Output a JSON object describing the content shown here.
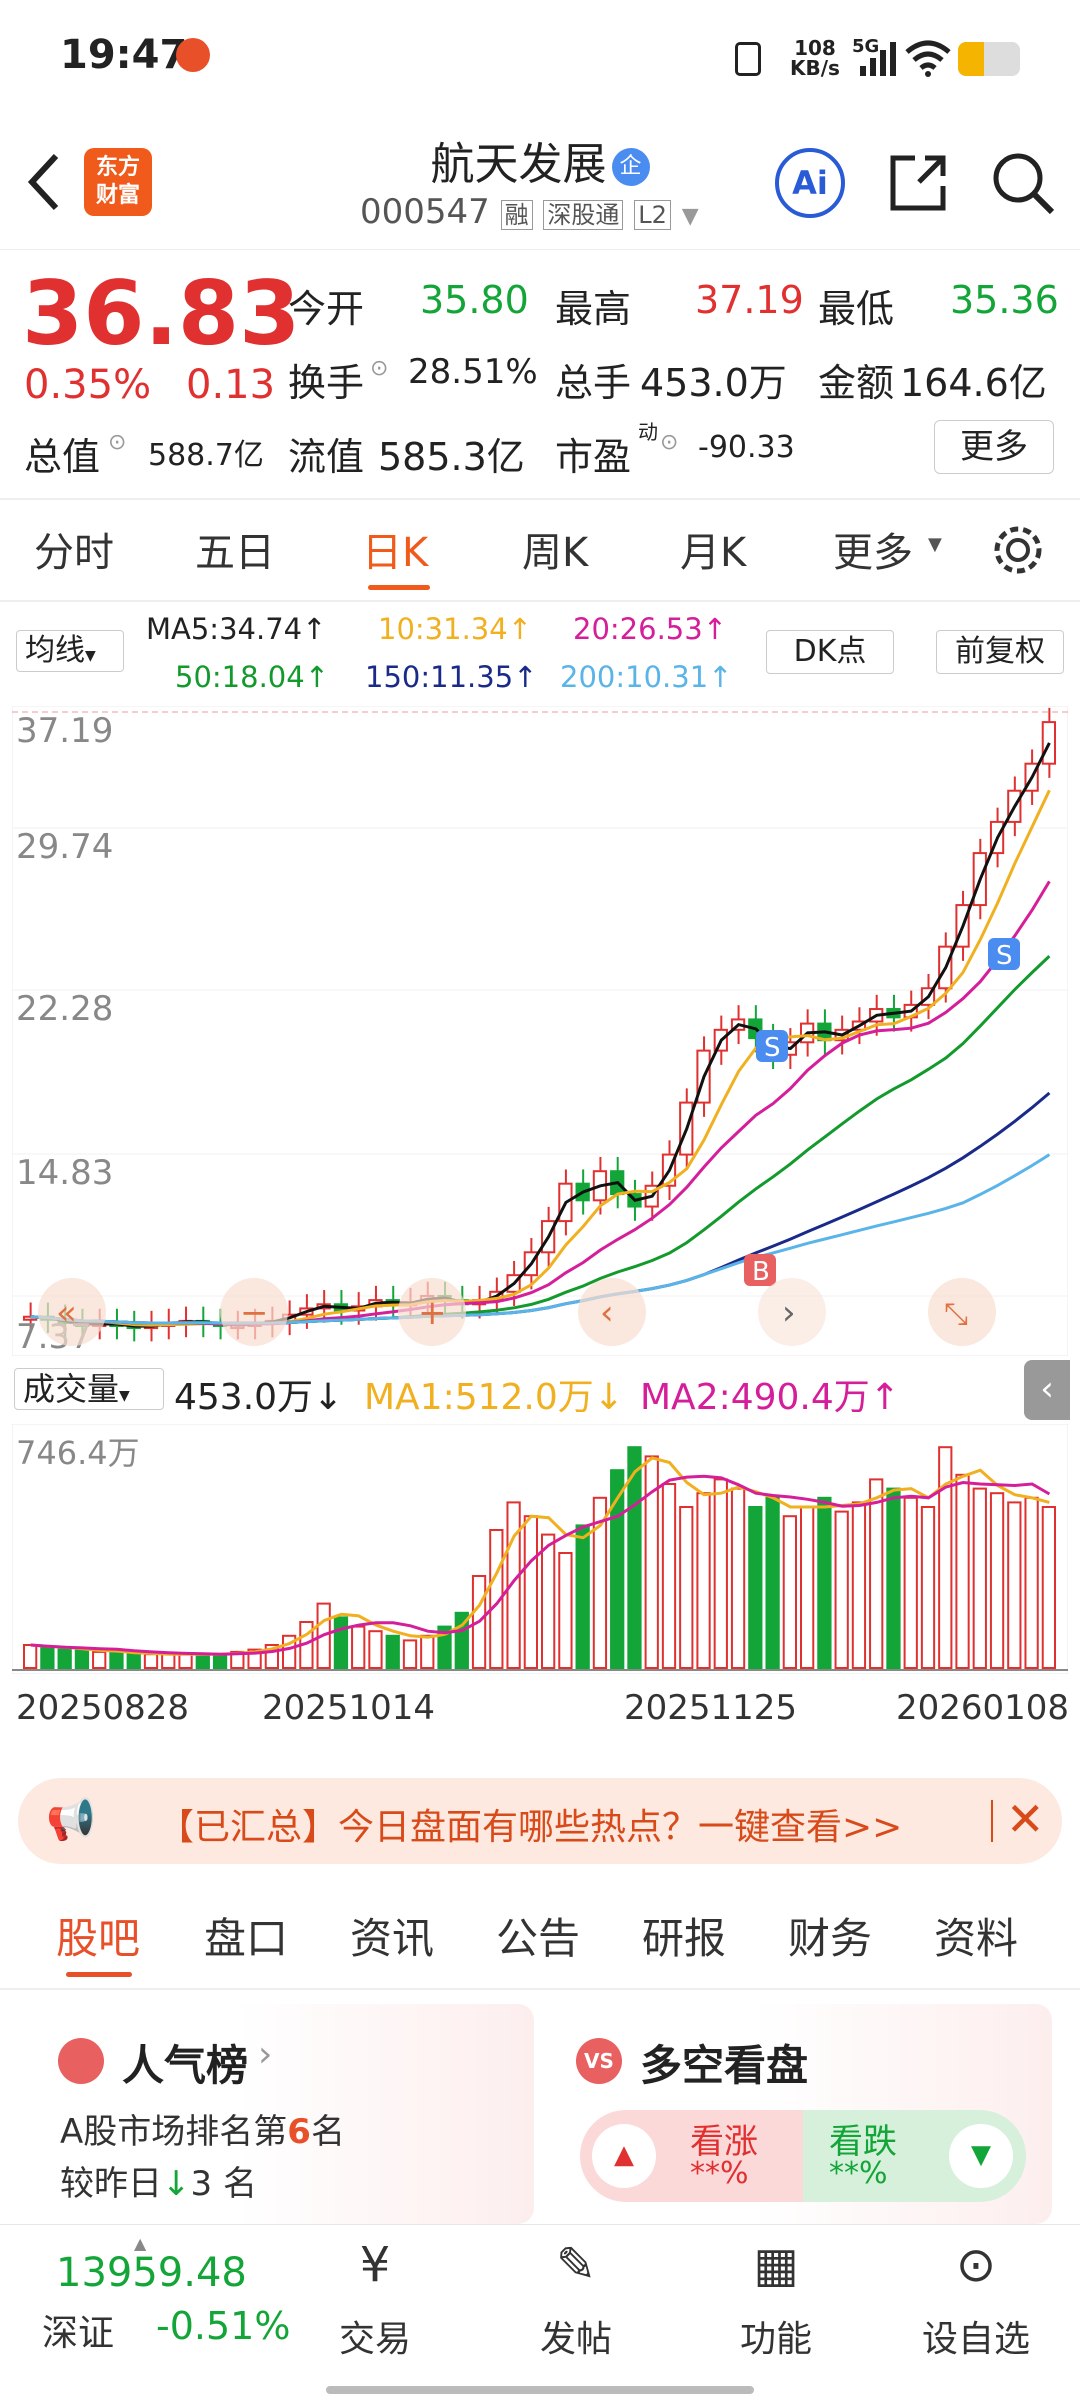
{
  "status": {
    "time": "19:47",
    "net_speed": "108",
    "net_unit": "KB/s",
    "signal": "5G"
  },
  "header": {
    "title": "航天发展",
    "badge": "企",
    "code": "000547",
    "tags": [
      "融",
      "深股通",
      "L2"
    ],
    "app_logo": "东方\n财富",
    "ai_label": "Ai"
  },
  "quote": {
    "price": "36.83",
    "change_pct": "0.35%",
    "change": "0.13",
    "open_label": "今开",
    "open": "35.80",
    "high_label": "最高",
    "high": "37.19",
    "low_label": "最低",
    "low": "35.36",
    "turnover_label": "换手",
    "turnover": "28.51%",
    "volume_label": "总手",
    "volume": "453.0万",
    "amount_label": "金额",
    "amount": "164.6亿",
    "mktcap_label": "总值",
    "mktcap": "588.7亿",
    "float_label": "流值",
    "float": "585.3亿",
    "pe_label": "市盈",
    "pe_sup": "动",
    "pe": "-90.33",
    "more": "更多"
  },
  "chart_tabs": [
    "分时",
    "五日",
    "日K",
    "周K",
    "月K",
    "更多"
  ],
  "active_tab": "日K",
  "ma_legend": {
    "selector": "均线",
    "ma5": "MA5:34.74↑",
    "ma10": "10:31.34↑",
    "ma20": "20:26.53↑",
    "ma50": "50:18.04↑",
    "ma150": "150:11.35↑",
    "ma200": "200:10.31↑",
    "dk": "DK点",
    "fq": "前复权"
  },
  "vol_legend": {
    "selector": "成交量",
    "vol": "453.0万↓",
    "ma1": "MA1:512.0万↓",
    "ma2": "MA2:490.4万↑",
    "max": "746.4万"
  },
  "chart_data": {
    "type": "candlestick",
    "yticks": [
      "37.19",
      "29.74",
      "22.28",
      "14.83",
      "7.37"
    ],
    "xticks": [
      "20250828",
      "20251014",
      "20251125",
      "20260108"
    ],
    "ylim": [
      7.37,
      37.19
    ],
    "close_trend": [
      8.2,
      8.1,
      7.9,
      7.8,
      7.9,
      7.8,
      7.7,
      7.8,
      7.9,
      8.0,
      7.9,
      7.8,
      7.8,
      7.9,
      8.0,
      8.3,
      8.6,
      8.8,
      8.5,
      8.7,
      9.0,
      8.8,
      8.9,
      9.2,
      9.0,
      8.8,
      9.0,
      9.4,
      10.2,
      11.3,
      12.8,
      14.6,
      13.8,
      15.2,
      14.1,
      13.5,
      14.5,
      16.0,
      18.5,
      21.0,
      22.0,
      22.5,
      21.6,
      20.8,
      21.4,
      22.3,
      21.5,
      22.0,
      22.4,
      23.0,
      22.6,
      23.2,
      24.0,
      26.0,
      28.0,
      30.5,
      32.0,
      33.5,
      34.8,
      36.8
    ],
    "volume_trend": [
      10,
      9,
      8,
      8,
      7,
      7,
      6,
      6,
      6,
      6,
      6,
      6,
      7,
      8,
      10,
      14,
      20,
      28,
      22,
      18,
      16,
      14,
      12,
      14,
      18,
      24,
      40,
      60,
      72,
      66,
      58,
      50,
      62,
      74,
      86,
      96,
      92,
      80,
      70,
      76,
      82,
      78,
      70,
      74,
      66,
      70,
      74,
      68,
      72,
      82,
      78,
      74,
      70,
      96,
      84,
      78,
      76,
      72,
      74,
      70
    ]
  },
  "banner": {
    "text": "【已汇总】今日盘面有哪些热点？一键查看>>"
  },
  "bottom_tabs": [
    "股吧",
    "盘口",
    "资讯",
    "公告",
    "研报",
    "财务",
    "资料"
  ],
  "cards": {
    "popularity_title": "人气榜",
    "rank_line_prefix": "A股市场排名第",
    "rank": "6",
    "rank_unit": "名",
    "change_prefix": "较昨日",
    "change_rank": "3",
    "change_unit": "名",
    "vs_title": "多空看盘",
    "bull": "看涨",
    "bull_pct": "**%",
    "bear": "看跌",
    "bear_pct": "**%"
  },
  "nav": {
    "index_value": "13959.48",
    "index_name": "深证",
    "index_change": "-0.51%",
    "items": [
      "交易",
      "发帖",
      "功能",
      "设自选"
    ]
  },
  "colors": {
    "up": "#e03030",
    "down": "#13a538",
    "accent": "#ff6a00"
  }
}
